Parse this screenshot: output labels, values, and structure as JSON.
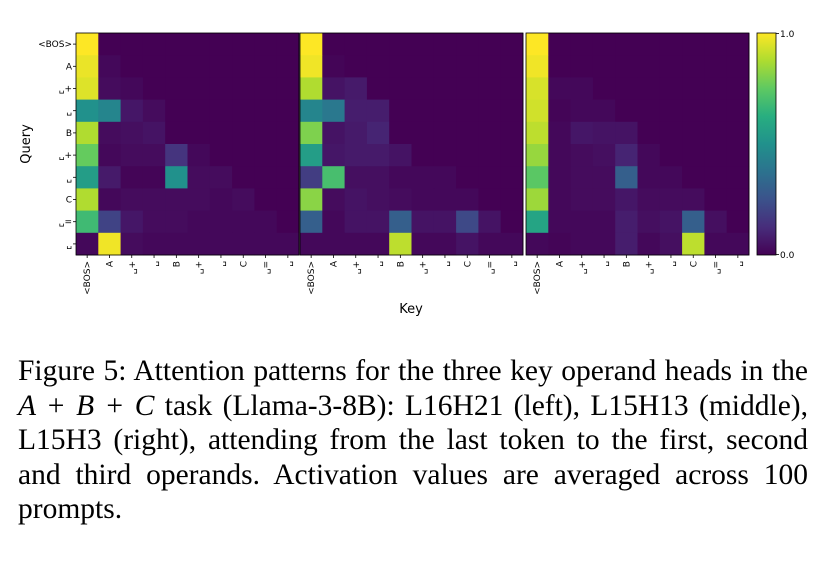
{
  "chart_data": {
    "type": "heatmap",
    "xlabel": "Key",
    "ylabel": "Query",
    "query_labels": [
      "<BOS>",
      "A",
      "␣+",
      "␣",
      "B",
      "␣+",
      "␣",
      "C",
      "␣=",
      "␣"
    ],
    "key_labels": [
      "<BOS>",
      "A",
      "␣+",
      "␣",
      "B",
      "␣+",
      "␣",
      "C",
      "␣=",
      "␣"
    ],
    "colorbar": {
      "min": 0.0,
      "max": 1.0,
      "min_label": "0.0",
      "max_label": "1.0",
      "colormap": "viridis"
    },
    "panels": [
      {
        "name": "L16H21",
        "matrix": [
          [
            1.0,
            0.0,
            0.0,
            0.0,
            0.0,
            0.0,
            0.0,
            0.0,
            0.0,
            0.0
          ],
          [
            0.97,
            0.02,
            0.0,
            0.0,
            0.0,
            0.0,
            0.0,
            0.0,
            0.0,
            0.0
          ],
          [
            0.95,
            0.03,
            0.02,
            0.0,
            0.0,
            0.0,
            0.0,
            0.0,
            0.0,
            0.0
          ],
          [
            0.5,
            0.45,
            0.06,
            0.03,
            0.0,
            0.0,
            0.0,
            0.0,
            0.0,
            0.0
          ],
          [
            0.88,
            0.03,
            0.04,
            0.05,
            0.0,
            0.0,
            0.0,
            0.0,
            0.0,
            0.0
          ],
          [
            0.76,
            0.02,
            0.03,
            0.03,
            0.15,
            0.02,
            0.0,
            0.0,
            0.0,
            0.0
          ],
          [
            0.55,
            0.07,
            0.01,
            0.01,
            0.5,
            0.03,
            0.03,
            0.0,
            0.0,
            0.0
          ],
          [
            0.88,
            0.02,
            0.03,
            0.03,
            0.03,
            0.03,
            0.02,
            0.03,
            0.0,
            0.0
          ],
          [
            0.68,
            0.2,
            0.06,
            0.03,
            0.03,
            0.02,
            0.02,
            0.02,
            0.02,
            0.0
          ],
          [
            0.02,
            0.98,
            0.03,
            0.02,
            0.02,
            0.02,
            0.02,
            0.02,
            0.02,
            0.02
          ]
        ]
      },
      {
        "name": "L15H13",
        "matrix": [
          [
            1.0,
            0.0,
            0.0,
            0.0,
            0.0,
            0.0,
            0.0,
            0.0,
            0.0,
            0.0
          ],
          [
            0.98,
            0.01,
            0.0,
            0.0,
            0.0,
            0.0,
            0.0,
            0.0,
            0.0,
            0.0
          ],
          [
            0.88,
            0.05,
            0.07,
            0.0,
            0.0,
            0.0,
            0.0,
            0.0,
            0.0,
            0.0
          ],
          [
            0.45,
            0.4,
            0.08,
            0.08,
            0.0,
            0.0,
            0.0,
            0.0,
            0.0,
            0.0
          ],
          [
            0.8,
            0.05,
            0.07,
            0.1,
            0.0,
            0.0,
            0.0,
            0.0,
            0.0,
            0.0
          ],
          [
            0.55,
            0.06,
            0.07,
            0.07,
            0.05,
            0.0,
            0.0,
            0.0,
            0.0,
            0.0
          ],
          [
            0.18,
            0.7,
            0.04,
            0.04,
            0.02,
            0.02,
            0.02,
            0.0,
            0.0,
            0.0
          ],
          [
            0.82,
            0.03,
            0.05,
            0.04,
            0.03,
            0.02,
            0.02,
            0.02,
            0.0,
            0.0
          ],
          [
            0.3,
            0.02,
            0.05,
            0.05,
            0.3,
            0.05,
            0.05,
            0.22,
            0.05,
            0.0
          ],
          [
            0.02,
            0.02,
            0.02,
            0.02,
            0.9,
            0.02,
            0.02,
            0.05,
            0.02,
            0.02
          ]
        ]
      },
      {
        "name": "L15H3",
        "matrix": [
          [
            1.0,
            0.0,
            0.0,
            0.0,
            0.0,
            0.0,
            0.0,
            0.0,
            0.0,
            0.0
          ],
          [
            0.98,
            0.0,
            0.0,
            0.0,
            0.0,
            0.0,
            0.0,
            0.0,
            0.0,
            0.0
          ],
          [
            0.94,
            0.02,
            0.02,
            0.0,
            0.0,
            0.0,
            0.0,
            0.0,
            0.0,
            0.0
          ],
          [
            0.93,
            0.01,
            0.02,
            0.02,
            0.0,
            0.0,
            0.0,
            0.0,
            0.0,
            0.0
          ],
          [
            0.9,
            0.02,
            0.06,
            0.05,
            0.05,
            0.0,
            0.0,
            0.0,
            0.0,
            0.0
          ],
          [
            0.84,
            0.02,
            0.03,
            0.04,
            0.1,
            0.02,
            0.0,
            0.0,
            0.0,
            0.0
          ],
          [
            0.74,
            0.02,
            0.03,
            0.03,
            0.3,
            0.02,
            0.02,
            0.0,
            0.0,
            0.0
          ],
          [
            0.85,
            0.02,
            0.03,
            0.03,
            0.06,
            0.03,
            0.03,
            0.03,
            0.0,
            0.0
          ],
          [
            0.58,
            0.02,
            0.02,
            0.02,
            0.08,
            0.04,
            0.05,
            0.3,
            0.04,
            0.0
          ],
          [
            0.02,
            0.01,
            0.02,
            0.02,
            0.08,
            0.02,
            0.04,
            0.9,
            0.02,
            0.02
          ]
        ]
      }
    ]
  },
  "caption": {
    "prefix": "Figure 5: Attention patterns for the three key operand heads in the ",
    "math": "A + B + C",
    "suffix": " task (Llama-3-8B): L16H21 (left), L15H13 (middle), L15H3 (right), attending from the last token to the first, second and third operands. Activation values are averaged across 100 prompts."
  }
}
